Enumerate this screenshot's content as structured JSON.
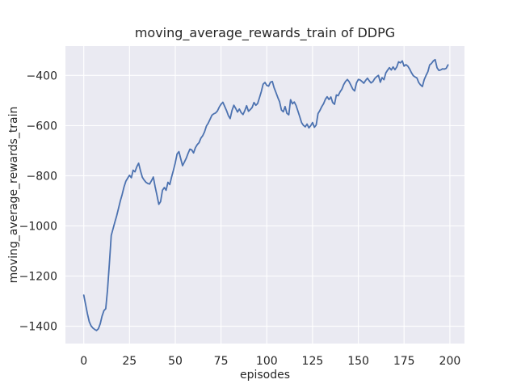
{
  "chart_data": {
    "type": "line",
    "title": "moving_average_rewards_train of DDPG",
    "xlabel": "episodes",
    "ylabel": "moving_average_rewards_train",
    "x_ticks": [
      0,
      25,
      50,
      75,
      100,
      125,
      150,
      175,
      200
    ],
    "y_ticks": [
      -400,
      -600,
      -800,
      -1000,
      -1200,
      -1400
    ],
    "xlim": [
      -10,
      208
    ],
    "ylim": [
      -1469,
      -283
    ],
    "grid": true,
    "legend_position": "none",
    "style": "seaborn-darkgrid",
    "colors": {
      "figure_bg": "#ffffff",
      "plot_bg": "#eaeaf2",
      "grid": "#ffffff",
      "line": "#4c72b0",
      "text": "#262626"
    },
    "series": [
      {
        "name": "moving_average_rewards_train",
        "color": "#4c72b0",
        "points": [
          [
            0,
            -1276
          ],
          [
            1,
            -1312
          ],
          [
            2,
            -1350
          ],
          [
            3,
            -1382
          ],
          [
            4,
            -1398
          ],
          [
            5,
            -1407
          ],
          [
            6,
            -1413
          ],
          [
            7,
            -1417
          ],
          [
            8,
            -1410
          ],
          [
            9,
            -1390
          ],
          [
            10,
            -1360
          ],
          [
            11,
            -1338
          ],
          [
            12,
            -1330
          ],
          [
            13,
            -1255
          ],
          [
            14,
            -1150
          ],
          [
            15,
            -1038
          ],
          [
            16,
            -1012
          ],
          [
            17,
            -985
          ],
          [
            18,
            -960
          ],
          [
            19,
            -930
          ],
          [
            20,
            -900
          ],
          [
            21,
            -875
          ],
          [
            22,
            -845
          ],
          [
            23,
            -822
          ],
          [
            24,
            -810
          ],
          [
            25,
            -798
          ],
          [
            26,
            -808
          ],
          [
            27,
            -778
          ],
          [
            28,
            -784
          ],
          [
            29,
            -764
          ],
          [
            30,
            -750
          ],
          [
            31,
            -780
          ],
          [
            32,
            -806
          ],
          [
            33,
            -817
          ],
          [
            34,
            -826
          ],
          [
            35,
            -831
          ],
          [
            36,
            -833
          ],
          [
            37,
            -820
          ],
          [
            38,
            -805
          ],
          [
            39,
            -843
          ],
          [
            40,
            -878
          ],
          [
            41,
            -914
          ],
          [
            42,
            -903
          ],
          [
            43,
            -858
          ],
          [
            44,
            -847
          ],
          [
            45,
            -858
          ],
          [
            46,
            -826
          ],
          [
            47,
            -835
          ],
          [
            48,
            -805
          ],
          [
            49,
            -778
          ],
          [
            50,
            -748
          ],
          [
            51,
            -713
          ],
          [
            52,
            -704
          ],
          [
            53,
            -733
          ],
          [
            54,
            -760
          ],
          [
            55,
            -745
          ],
          [
            56,
            -730
          ],
          [
            57,
            -711
          ],
          [
            58,
            -694
          ],
          [
            59,
            -697
          ],
          [
            60,
            -709
          ],
          [
            61,
            -688
          ],
          [
            62,
            -676
          ],
          [
            63,
            -668
          ],
          [
            64,
            -650
          ],
          [
            65,
            -640
          ],
          [
            66,
            -625
          ],
          [
            67,
            -602
          ],
          [
            68,
            -590
          ],
          [
            69,
            -575
          ],
          [
            70,
            -559
          ],
          [
            71,
            -553
          ],
          [
            72,
            -550
          ],
          [
            73,
            -542
          ],
          [
            74,
            -527
          ],
          [
            75,
            -515
          ],
          [
            76,
            -507
          ],
          [
            77,
            -523
          ],
          [
            78,
            -540
          ],
          [
            79,
            -560
          ],
          [
            80,
            -572
          ],
          [
            81,
            -540
          ],
          [
            82,
            -519
          ],
          [
            83,
            -531
          ],
          [
            84,
            -546
          ],
          [
            85,
            -534
          ],
          [
            86,
            -548
          ],
          [
            87,
            -556
          ],
          [
            88,
            -540
          ],
          [
            89,
            -521
          ],
          [
            90,
            -543
          ],
          [
            91,
            -536
          ],
          [
            92,
            -528
          ],
          [
            93,
            -508
          ],
          [
            94,
            -519
          ],
          [
            95,
            -512
          ],
          [
            96,
            -489
          ],
          [
            97,
            -464
          ],
          [
            98,
            -435
          ],
          [
            99,
            -428
          ],
          [
            100,
            -440
          ],
          [
            101,
            -443
          ],
          [
            102,
            -427
          ],
          [
            103,
            -424
          ],
          [
            104,
            -449
          ],
          [
            105,
            -468
          ],
          [
            106,
            -488
          ],
          [
            107,
            -505
          ],
          [
            108,
            -538
          ],
          [
            109,
            -545
          ],
          [
            110,
            -524
          ],
          [
            111,
            -551
          ],
          [
            112,
            -557
          ],
          [
            113,
            -497
          ],
          [
            114,
            -513
          ],
          [
            115,
            -506
          ],
          [
            116,
            -520
          ],
          [
            117,
            -542
          ],
          [
            118,
            -565
          ],
          [
            119,
            -588
          ],
          [
            120,
            -599
          ],
          [
            121,
            -605
          ],
          [
            122,
            -594
          ],
          [
            123,
            -609
          ],
          [
            124,
            -600
          ],
          [
            125,
            -588
          ],
          [
            126,
            -607
          ],
          [
            127,
            -598
          ],
          [
            128,
            -552
          ],
          [
            129,
            -540
          ],
          [
            130,
            -525
          ],
          [
            131,
            -513
          ],
          [
            132,
            -495
          ],
          [
            133,
            -485
          ],
          [
            134,
            -496
          ],
          [
            135,
            -486
          ],
          [
            136,
            -508
          ],
          [
            137,
            -515
          ],
          [
            138,
            -478
          ],
          [
            139,
            -481
          ],
          [
            140,
            -466
          ],
          [
            141,
            -455
          ],
          [
            142,
            -437
          ],
          [
            143,
            -424
          ],
          [
            144,
            -416
          ],
          [
            145,
            -425
          ],
          [
            146,
            -440
          ],
          [
            147,
            -455
          ],
          [
            148,
            -462
          ],
          [
            149,
            -430
          ],
          [
            150,
            -416
          ],
          [
            151,
            -418
          ],
          [
            152,
            -424
          ],
          [
            153,
            -431
          ],
          [
            154,
            -420
          ],
          [
            155,
            -411
          ],
          [
            156,
            -422
          ],
          [
            157,
            -430
          ],
          [
            158,
            -424
          ],
          [
            159,
            -412
          ],
          [
            160,
            -405
          ],
          [
            161,
            -400
          ],
          [
            162,
            -427
          ],
          [
            163,
            -409
          ],
          [
            164,
            -417
          ],
          [
            165,
            -390
          ],
          [
            166,
            -379
          ],
          [
            167,
            -369
          ],
          [
            168,
            -378
          ],
          [
            169,
            -366
          ],
          [
            170,
            -377
          ],
          [
            171,
            -366
          ],
          [
            172,
            -346
          ],
          [
            173,
            -350
          ],
          [
            174,
            -342
          ],
          [
            175,
            -363
          ],
          [
            176,
            -357
          ],
          [
            177,
            -363
          ],
          [
            178,
            -374
          ],
          [
            179,
            -389
          ],
          [
            180,
            -401
          ],
          [
            181,
            -406
          ],
          [
            182,
            -410
          ],
          [
            183,
            -428
          ],
          [
            184,
            -438
          ],
          [
            185,
            -444
          ],
          [
            186,
            -417
          ],
          [
            187,
            -400
          ],
          [
            188,
            -385
          ],
          [
            189,
            -358
          ],
          [
            190,
            -352
          ],
          [
            191,
            -342
          ],
          [
            192,
            -337
          ],
          [
            193,
            -369
          ],
          [
            194,
            -380
          ],
          [
            195,
            -378
          ],
          [
            196,
            -374
          ],
          [
            197,
            -375
          ],
          [
            198,
            -372
          ],
          [
            199,
            -358
          ]
        ]
      }
    ]
  }
}
